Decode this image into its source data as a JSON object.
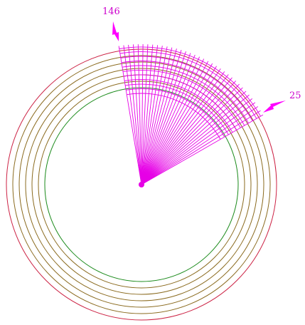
{
  "labels": {
    "left": "146",
    "right": "25"
  },
  "colors": {
    "outer_ring": "#cc2244",
    "middle_rings": "#8a6a1e",
    "inner_ring": "#1a8a1a",
    "fan": "#e600e6",
    "label": "#cc00cc",
    "arrow": "#ff00ff"
  },
  "rings": {
    "middle_count": 5
  },
  "fan": {
    "ray_count": 36,
    "arc_count": 11
  }
}
